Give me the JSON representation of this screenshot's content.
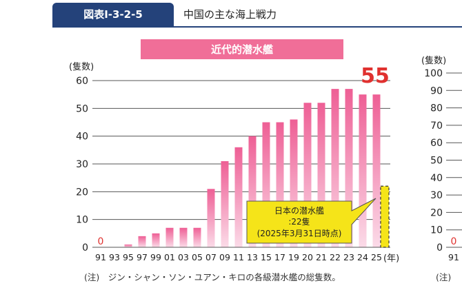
{
  "header": {
    "figure_number": "図表Ⅰ-3-2-5",
    "title": "中国の主な海上戦力"
  },
  "chart_data": [
    {
      "type": "bar",
      "title": "近代的潜水艦",
      "ylabel": "(隻数)",
      "xlabel": "(年)",
      "ylim": [
        0,
        60
      ],
      "yticks": [
        0,
        10,
        20,
        30,
        40,
        50,
        60
      ],
      "grid": true,
      "categories": [
        "91",
        "93",
        "95",
        "97",
        "99",
        "01",
        "03",
        "05",
        "07",
        "09",
        "11",
        "13",
        "15",
        "17",
        "19",
        "20",
        "21",
        "22",
        "23",
        "24",
        "25"
      ],
      "values": [
        0,
        0,
        1,
        4,
        5,
        7,
        7,
        7,
        21,
        31,
        36,
        40,
        45,
        45,
        46,
        52,
        52,
        57,
        57,
        55,
        55
      ],
      "start_value_label": "0",
      "end_value_label": "55",
      "colors": {
        "bar_top": "#ee5f95",
        "bar_bottom": "#fbdbe8",
        "title_bg": "#f06e98",
        "highlight_label": "#e0312f",
        "japan_fill": "#f5e419"
      },
      "annotation": {
        "line1": "日本の潜水艦",
        "line2": ":22隻",
        "line3": "(2025年3月31日時点)",
        "value": 22
      },
      "note": "(注)　ジン・シャン・ソン・ユアン・キロの各級潜水艦の総隻数。"
    },
    {
      "type": "bar",
      "ylabel": "(隻数)",
      "ylim": [
        0,
        100
      ],
      "yticks": [
        0,
        10,
        20,
        30,
        40,
        50,
        60,
        70,
        80,
        90,
        100
      ],
      "categories": [
        "91"
      ],
      "start_value_label": "0",
      "note": "(注)"
    }
  ]
}
